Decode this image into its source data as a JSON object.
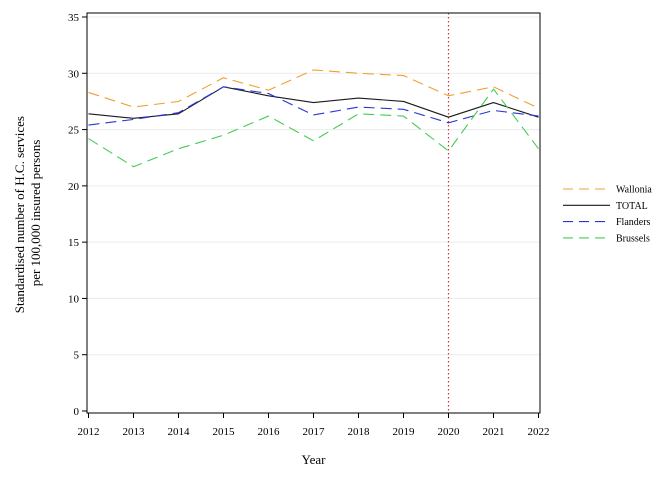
{
  "chart_data": {
    "type": "line",
    "title": "",
    "xlabel": "Year",
    "ylabel_lines": [
      "Standardised number of H.C. services",
      "per 100,000 insured persons"
    ],
    "x": [
      2012,
      2013,
      2014,
      2015,
      2016,
      2017,
      2018,
      2019,
      2020,
      2021,
      2022
    ],
    "xlim": [
      2012,
      2022
    ],
    "ylim": [
      0,
      35
    ],
    "yticks": [
      0,
      5,
      10,
      15,
      20,
      25,
      30,
      35
    ],
    "grid": "horizontal",
    "legend_position": "right",
    "reference_line": {
      "x": 2020,
      "color": "#d9363e",
      "style": "dotted"
    },
    "series": [
      {
        "name": "Wallonia",
        "color": "#f0a030",
        "dash": "long-dash",
        "values": [
          28.3,
          27.0,
          27.5,
          29.6,
          28.5,
          30.3,
          30.0,
          29.8,
          28.0,
          28.8,
          26.9
        ]
      },
      {
        "name": "TOTAL",
        "color": "#1a1a1a",
        "dash": "solid",
        "values": [
          26.4,
          26.0,
          26.4,
          28.8,
          28.0,
          27.4,
          27.8,
          27.5,
          26.1,
          27.4,
          26.1
        ]
      },
      {
        "name": "Flanders",
        "color": "#2b35d6",
        "dash": "long-dash",
        "values": [
          25.4,
          25.9,
          26.5,
          28.8,
          28.2,
          26.3,
          27.0,
          26.8,
          25.6,
          26.7,
          26.2
        ]
      },
      {
        "name": "Brussels",
        "color": "#44cc55",
        "dash": "long-dash",
        "values": [
          24.2,
          21.7,
          23.3,
          24.5,
          26.2,
          24.0,
          26.4,
          26.2,
          23.1,
          28.6,
          23.3
        ]
      }
    ]
  }
}
